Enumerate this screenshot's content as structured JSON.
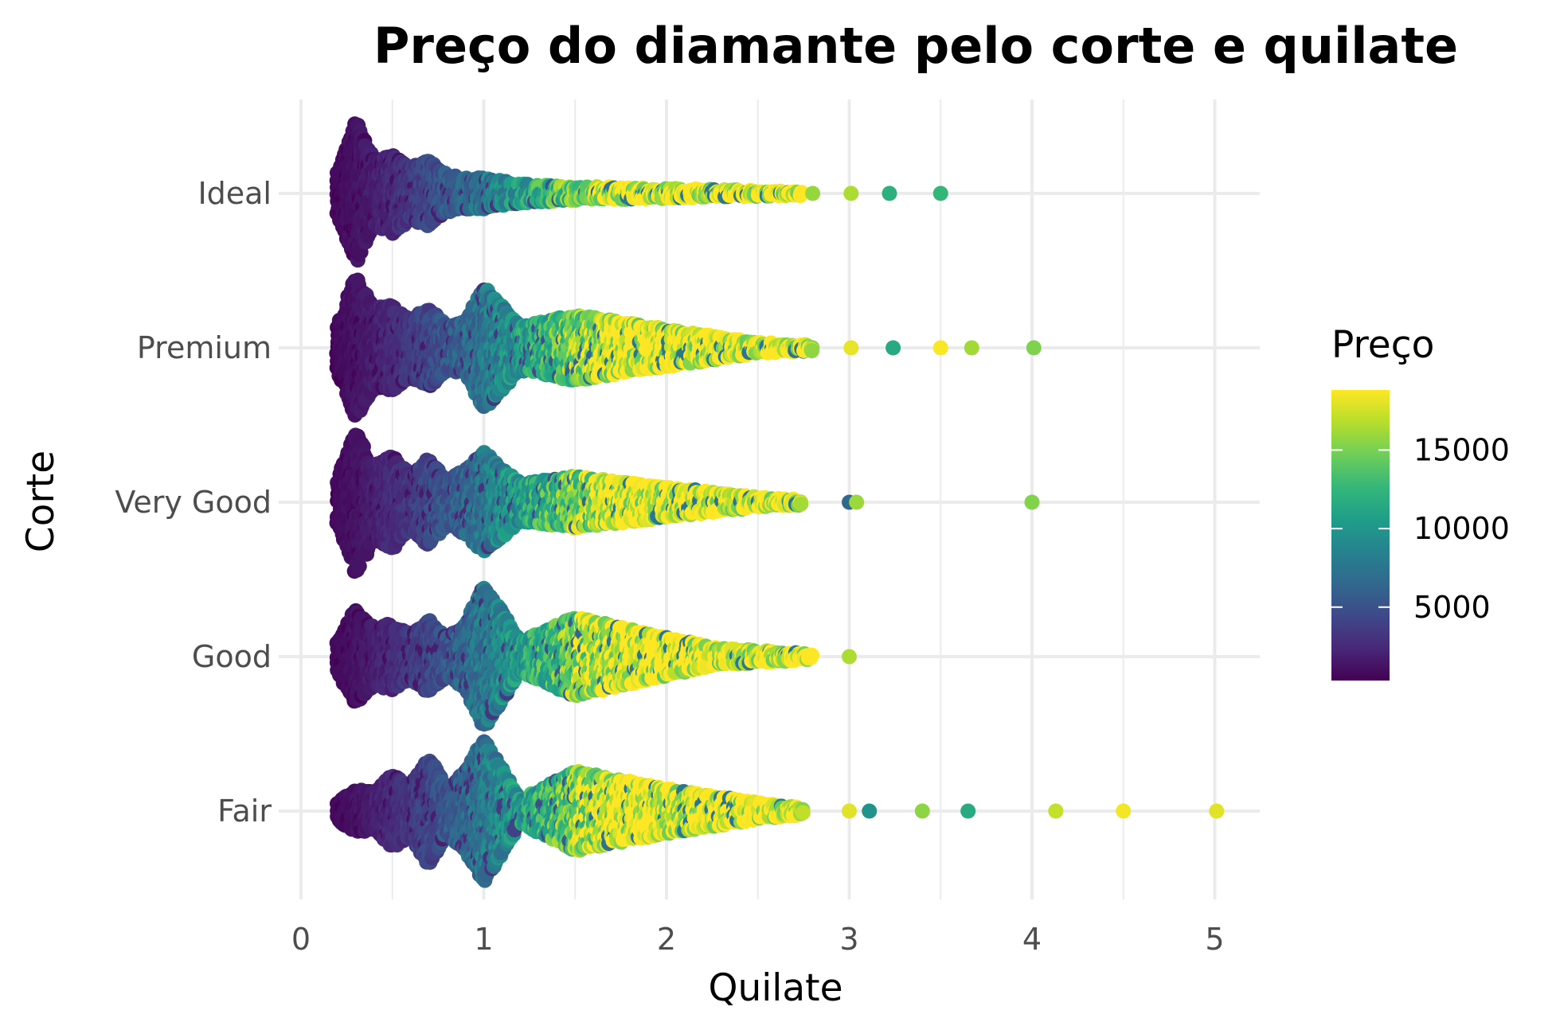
{
  "chart_data": {
    "type": "scatter",
    "subtype": "beeswarm",
    "title": "Preço do diamante pelo corte e quilate",
    "xlabel": "Quilate",
    "ylabel": "Corte",
    "xlim": [
      0,
      5.2
    ],
    "x_ticks": [
      "0",
      "1",
      "2",
      "3",
      "4",
      "5"
    ],
    "categories": [
      "Ideal",
      "Premium",
      "Very Good",
      "Good",
      "Fair"
    ],
    "grid": "on",
    "color_scale": {
      "name": "viridis",
      "range": [
        326,
        18823
      ],
      "stops": [
        "#440154",
        "#482878",
        "#3e4989",
        "#31688e",
        "#26828e",
        "#1f9e89",
        "#35b779",
        "#6ece58",
        "#b5de2b",
        "#fde725"
      ]
    },
    "legend": {
      "title": "Preço",
      "placement": "right",
      "ticks": [
        5000,
        10000,
        15000
      ],
      "tick_labels": [
        "5000",
        "10000",
        "15000"
      ]
    },
    "series": [
      {
        "category": "Ideal",
        "density": [
          [
            0.2,
            0.3
          ],
          [
            0.3,
            1.0
          ],
          [
            0.4,
            0.45
          ],
          [
            0.5,
            0.55
          ],
          [
            0.6,
            0.35
          ],
          [
            0.7,
            0.45
          ],
          [
            0.8,
            0.25
          ],
          [
            0.9,
            0.2
          ],
          [
            1.0,
            0.2
          ],
          [
            1.2,
            0.12
          ],
          [
            1.5,
            0.08
          ],
          [
            2.0,
            0.05
          ],
          [
            2.5,
            0.02
          ],
          [
            2.75,
            0.01
          ]
        ],
        "outliers": [
          [
            2.8,
            15900
          ],
          [
            3.01,
            16500
          ],
          [
            3.22,
            12000
          ],
          [
            3.5,
            12600
          ]
        ]
      },
      {
        "category": "Premium",
        "density": [
          [
            0.2,
            0.3
          ],
          [
            0.3,
            1.0
          ],
          [
            0.4,
            0.55
          ],
          [
            0.5,
            0.6
          ],
          [
            0.6,
            0.4
          ],
          [
            0.7,
            0.55
          ],
          [
            0.8,
            0.3
          ],
          [
            0.9,
            0.35
          ],
          [
            1.0,
            0.85
          ],
          [
            1.2,
            0.3
          ],
          [
            1.5,
            0.45
          ],
          [
            2.0,
            0.25
          ],
          [
            2.5,
            0.06
          ],
          [
            2.8,
            0.02
          ]
        ],
        "outliers": [
          [
            3.01,
            18200
          ],
          [
            3.24,
            11500
          ],
          [
            3.5,
            18700
          ],
          [
            3.67,
            16200
          ],
          [
            4.01,
            15200
          ]
        ]
      },
      {
        "category": "Very Good",
        "density": [
          [
            0.2,
            0.3
          ],
          [
            0.3,
            1.0
          ],
          [
            0.4,
            0.5
          ],
          [
            0.5,
            0.65
          ],
          [
            0.6,
            0.35
          ],
          [
            0.7,
            0.6
          ],
          [
            0.8,
            0.3
          ],
          [
            0.9,
            0.45
          ],
          [
            1.0,
            0.7
          ],
          [
            1.2,
            0.25
          ],
          [
            1.5,
            0.35
          ],
          [
            2.0,
            0.2
          ],
          [
            2.5,
            0.05
          ],
          [
            2.74,
            0.02
          ]
        ],
        "outliers": [
          [
            3.0,
            6500
          ],
          [
            3.04,
            16000
          ],
          [
            4.0,
            15300
          ]
        ]
      },
      {
        "category": "Good",
        "density": [
          [
            0.2,
            0.2
          ],
          [
            0.3,
            0.65
          ],
          [
            0.4,
            0.4
          ],
          [
            0.5,
            0.45
          ],
          [
            0.6,
            0.3
          ],
          [
            0.7,
            0.5
          ],
          [
            0.8,
            0.25
          ],
          [
            0.9,
            0.45
          ],
          [
            1.0,
            1.0
          ],
          [
            1.2,
            0.2
          ],
          [
            1.5,
            0.55
          ],
          [
            2.0,
            0.25
          ],
          [
            2.3,
            0.1
          ],
          [
            2.8,
            0.02
          ]
        ],
        "outliers": [
          [
            3.0,
            16500
          ]
        ]
      },
      {
        "category": "Fair",
        "density": [
          [
            0.2,
            0.1
          ],
          [
            0.3,
            0.3
          ],
          [
            0.4,
            0.25
          ],
          [
            0.5,
            0.5
          ],
          [
            0.6,
            0.35
          ],
          [
            0.7,
            0.75
          ],
          [
            0.8,
            0.3
          ],
          [
            0.9,
            0.55
          ],
          [
            1.0,
            1.0
          ],
          [
            1.2,
            0.15
          ],
          [
            1.5,
            0.55
          ],
          [
            2.0,
            0.3
          ],
          [
            2.5,
            0.1
          ],
          [
            2.75,
            0.03
          ]
        ],
        "outliers": [
          [
            3.0,
            18000
          ],
          [
            3.11,
            9800
          ],
          [
            3.4,
            15600
          ],
          [
            3.65,
            11600
          ],
          [
            4.13,
            17200
          ],
          [
            4.5,
            18500
          ],
          [
            5.01,
            18000
          ]
        ]
      }
    ]
  }
}
